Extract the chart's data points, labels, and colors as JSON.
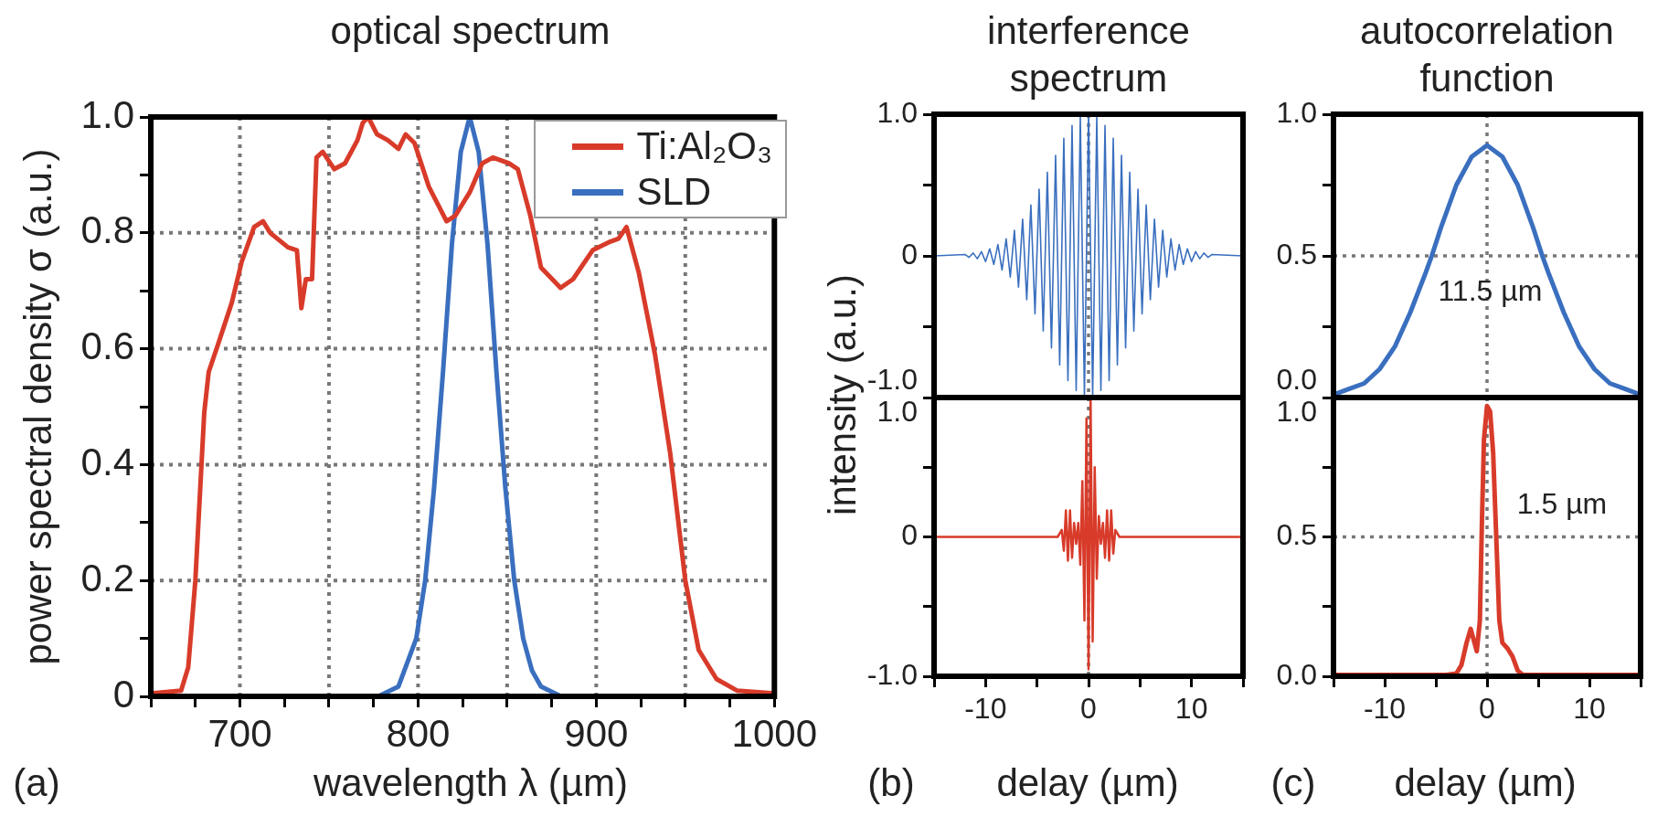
{
  "chart_data": [
    {
      "type": "line",
      "title": "optical spectrum",
      "xlabel": "wavelength λ (µm)",
      "ylabel": "power spectral density σ (a.u.)",
      "annotations": [
        "(a)"
      ],
      "xlim": [
        650,
        1000
      ],
      "ylim": [
        0,
        1
      ],
      "xticks": [
        {
          "value": 650,
          "label": null
        },
        {
          "value": 675,
          "label": null
        },
        700,
        {
          "value": 725,
          "label": null
        },
        {
          "value": 750,
          "label": null
        },
        {
          "value": 775,
          "label": null
        },
        800,
        {
          "value": 825,
          "label": null
        },
        {
          "value": 850,
          "label": null
        },
        {
          "value": 875,
          "label": null
        },
        900,
        {
          "value": 925,
          "label": null
        },
        {
          "value": 950,
          "label": null
        },
        {
          "value": 975,
          "label": null
        },
        1000
      ],
      "yticks": [
        0,
        {
          "value": 0.1,
          "label": null
        },
        0.2,
        {
          "value": 0.3,
          "label": null
        },
        0.4,
        {
          "value": 0.5,
          "label": null
        },
        0.6,
        {
          "value": 0.7,
          "label": null
        },
        0.8,
        {
          "value": 0.9,
          "label": null
        },
        {
          "value": 1,
          "label": "1.0"
        }
      ],
      "grid": true,
      "legend": "top right",
      "series": [
        {
          "name": "Ti:Al₂O₃",
          "color": "#d83b2a",
          "x": [
            650,
            667,
            671,
            675,
            680,
            682.5,
            688,
            695.5,
            701,
            708,
            713,
            717,
            721,
            727,
            732,
            734.5,
            737,
            740.5,
            743,
            746.5,
            753,
            759,
            766,
            769,
            772,
            777,
            783,
            789,
            793,
            798,
            806,
            816,
            821,
            829,
            836,
            842,
            851,
            856,
            863,
            869,
            880,
            887,
            898,
            908,
            912.5,
            917,
            924,
            933,
            941.5,
            950,
            957.5,
            967.5,
            979,
            1000
          ],
          "values": [
            0.005,
            0.01,
            0.05,
            0.2,
            0.49,
            0.56,
            0.61,
            0.68,
            0.75,
            0.81,
            0.82,
            0.8,
            0.79,
            0.775,
            0.77,
            0.67,
            0.72,
            0.72,
            0.93,
            0.94,
            0.91,
            0.92,
            0.96,
            0.99,
            1.0,
            0.97,
            0.96,
            0.945,
            0.97,
            0.955,
            0.88,
            0.82,
            0.83,
            0.87,
            0.92,
            0.93,
            0.92,
            0.91,
            0.83,
            0.74,
            0.705,
            0.72,
            0.77,
            0.785,
            0.79,
            0.81,
            0.73,
            0.59,
            0.42,
            0.2,
            0.08,
            0.03,
            0.01,
            0.005
          ]
        },
        {
          "name": "SLD",
          "color": "#3a6fbf",
          "x": [
            779,
            789,
            799,
            804,
            809,
            814,
            819,
            824,
            829,
            834,
            839,
            844,
            849,
            854,
            859,
            864,
            869,
            879
          ],
          "values": [
            0.002,
            0.017,
            0.1,
            0.2,
            0.36,
            0.56,
            0.78,
            0.94,
            1.0,
            0.94,
            0.78,
            0.56,
            0.36,
            0.2,
            0.1,
            0.044,
            0.017,
            0.002
          ]
        }
      ]
    },
    {
      "type": "line",
      "title": "interference spectrum",
      "ylabel": "intensity (a.u.)",
      "xlim": [
        -15,
        15
      ],
      "ylim": [
        -1,
        1
      ],
      "tick_labels": "y",
      "yticks": [
        {
          "value": -1,
          "label": "-1.0"
        },
        {
          "value": -0.5,
          "label": null
        },
        0,
        {
          "value": 0.5,
          "label": null
        },
        {
          "value": 1,
          "label": "1.0"
        }
      ],
      "ref_lines": [
        {
          "axis": "x",
          "value": 0,
          "line_style": "dotted"
        }
      ],
      "series": [
        {
          "color": "#3a6fbf",
          "x": [
            -15,
            -12,
            -11.6,
            -11.2,
            -10.8,
            -10.4,
            -10,
            -9.6,
            -9.2,
            -8.8,
            -8.4,
            -8,
            -7.6,
            -7.2,
            -6.8,
            -6.4,
            -6,
            -5.6,
            -5.2,
            -4.8,
            -4.4,
            -4,
            -3.6,
            -3.2,
            -2.8,
            -2.4,
            -2,
            -1.6,
            -1.2,
            -0.8,
            -0.4,
            0,
            0.4,
            0.8,
            1.2,
            1.6,
            2,
            2.4,
            2.8,
            3.2,
            3.6,
            4,
            4.4,
            4.8,
            5.2,
            5.6,
            6,
            6.4,
            6.8,
            7.2,
            7.6,
            8,
            8.4,
            8.8,
            9.2,
            9.6,
            10,
            10.4,
            10.8,
            11.2,
            11.6,
            12,
            15
          ],
          "values": [
            0,
            0.01,
            -0.01,
            0.02,
            -0.02,
            0.03,
            -0.04,
            0.05,
            -0.06,
            0.08,
            -0.1,
            0.12,
            -0.15,
            0.18,
            -0.22,
            0.26,
            -0.31,
            0.36,
            -0.41,
            0.47,
            -0.53,
            0.59,
            -0.65,
            0.71,
            -0.77,
            0.83,
            -0.88,
            0.92,
            -0.95,
            0.98,
            -0.99,
            1,
            -0.99,
            0.98,
            -0.95,
            0.92,
            -0.88,
            0.83,
            -0.77,
            0.71,
            -0.65,
            0.59,
            -0.53,
            0.47,
            -0.41,
            0.36,
            -0.31,
            0.26,
            -0.22,
            0.18,
            -0.15,
            0.12,
            -0.1,
            0.08,
            -0.06,
            0.05,
            -0.04,
            0.03,
            -0.02,
            0.02,
            -0.01,
            0.01,
            0
          ]
        }
      ]
    },
    {
      "type": "line",
      "xlabel": "delay (µm)",
      "annotations": [
        "(b)"
      ],
      "xlim": [
        -15,
        15
      ],
      "ylim": [
        -1,
        1
      ],
      "xticks": [
        {
          "value": -15,
          "label": null
        },
        -10,
        {
          "value": -5,
          "label": null
        },
        0,
        {
          "value": 5,
          "label": null
        },
        10,
        {
          "value": 15,
          "label": null
        }
      ],
      "yticks": [
        {
          "value": -1,
          "label": "-1.0"
        },
        {
          "value": -0.5,
          "label": null
        },
        0,
        {
          "value": 0.5,
          "label": null
        },
        {
          "value": 1,
          "label": "1.0"
        }
      ],
      "ref_lines": [
        {
          "axis": "x",
          "value": 0,
          "line_style": "dotted"
        }
      ],
      "series": [
        {
          "color": "#d83b2a",
          "x": [
            -15,
            -3,
            -2.6,
            -2.4,
            -2.2,
            -2,
            -1.8,
            -1.6,
            -1.4,
            -1.2,
            -1,
            -0.8,
            -0.6,
            -0.4,
            -0.2,
            0,
            0.2,
            0.4,
            0.6,
            0.8,
            1,
            1.2,
            1.4,
            1.6,
            1.8,
            2,
            2.2,
            2.4,
            2.6,
            3,
            15
          ],
          "values": [
            0,
            0,
            0.05,
            -0.1,
            0.19,
            -0.17,
            0.19,
            -0.15,
            0.1,
            -0.05,
            0.1,
            -0.2,
            0.4,
            -0.6,
            0.85,
            -0.95,
            0.99,
            -0.75,
            0.5,
            -0.3,
            0.15,
            -0.05,
            0.1,
            -0.15,
            0.19,
            -0.17,
            0.19,
            -0.12,
            0.05,
            0,
            0
          ]
        }
      ]
    },
    {
      "type": "line",
      "title": "autocorrelation function",
      "xlim": [
        -15,
        15
      ],
      "ylim": [
        0,
        1
      ],
      "tick_labels": "y",
      "yticks": [
        {
          "value": 0,
          "label": "0.0"
        },
        {
          "value": 0.25,
          "label": null
        },
        0.5,
        {
          "value": 0.75,
          "label": null
        },
        {
          "value": 1,
          "label": "1.0"
        }
      ],
      "ref_lines": [
        {
          "axis": "x",
          "value": 0,
          "line_style": "dotted"
        },
        {
          "axis": "y",
          "value": 0.5,
          "line_style": "dotted"
        }
      ],
      "annotations": [
        {
          "text": "11.5 µm",
          "x": 0.3,
          "y": 0.37
        }
      ],
      "series": [
        {
          "color": "#3a6fbf",
          "x": [
            -15,
            -13.5,
            -12,
            -10.5,
            -9,
            -7.5,
            -6,
            -5.4,
            -4.5,
            -3,
            -1.5,
            0,
            1.5,
            3,
            4.5,
            5.4,
            6,
            7.5,
            9,
            10.5,
            12,
            13.5,
            15
          ],
          "values": [
            0.01,
            0.03,
            0.05,
            0.1,
            0.18,
            0.3,
            0.44,
            0.5,
            0.6,
            0.75,
            0.85,
            0.89,
            0.85,
            0.75,
            0.6,
            0.5,
            0.44,
            0.3,
            0.18,
            0.1,
            0.05,
            0.03,
            0.01
          ]
        }
      ]
    },
    {
      "type": "line",
      "xlabel": "delay (µm)",
      "xlim": [
        -15,
        15
      ],
      "ylim": [
        0,
        1
      ],
      "xticks": [
        {
          "value": -15,
          "label": null
        },
        -10,
        {
          "value": -5,
          "label": null
        },
        0,
        {
          "value": 5,
          "label": null
        },
        10,
        {
          "value": 15,
          "label": null
        }
      ],
      "yticks": [
        {
          "value": 0,
          "label": "0.0"
        },
        {
          "value": 0.25,
          "label": null
        },
        0.5,
        {
          "value": 0.75,
          "label": null
        },
        {
          "value": 1,
          "label": "1.0"
        }
      ],
      "ref_lines": [
        {
          "axis": "x",
          "value": 0,
          "line_style": "dotted"
        },
        {
          "axis": "y",
          "value": 0.5,
          "line_style": "dotted"
        }
      ],
      "annotations": [
        "(c)",
        "1.5 µm"
      ],
      "series": [
        {
          "color": "#d83b2a",
          "x": [
            -15,
            -4,
            -3,
            -2.5,
            -2,
            -1.6,
            -1.3,
            -1,
            -0.7,
            -0.5,
            -0.3,
            0,
            0.3,
            0.6,
            0.9,
            1.2,
            1.5,
            2,
            2.5,
            3,
            3.5,
            15
          ],
          "values": [
            0.005,
            0.005,
            0.01,
            0.04,
            0.12,
            0.17,
            0.13,
            0.09,
            0.2,
            0.55,
            0.85,
            0.97,
            0.95,
            0.8,
            0.5,
            0.2,
            0.12,
            0.1,
            0.07,
            0.02,
            0.005,
            0.005
          ]
        }
      ]
    }
  ]
}
